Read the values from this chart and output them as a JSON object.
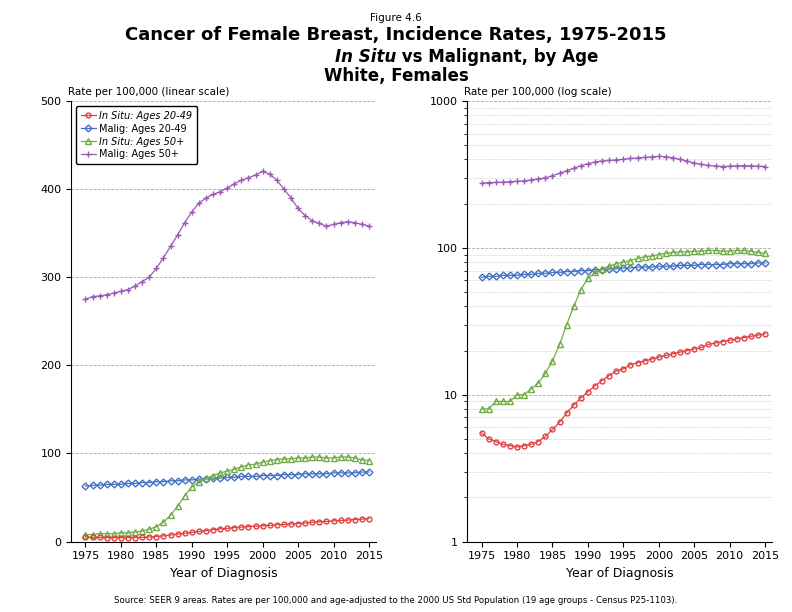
{
  "years": [
    1975,
    1976,
    1977,
    1978,
    1979,
    1980,
    1981,
    1982,
    1983,
    1984,
    1985,
    1986,
    1987,
    1988,
    1989,
    1990,
    1991,
    1992,
    1993,
    1994,
    1995,
    1996,
    1997,
    1998,
    1999,
    2000,
    2001,
    2002,
    2003,
    2004,
    2005,
    2006,
    2007,
    2008,
    2009,
    2010,
    2011,
    2012,
    2013,
    2014,
    2015
  ],
  "insitu_20_49": [
    5.5,
    5.0,
    4.8,
    4.6,
    4.5,
    4.4,
    4.5,
    4.6,
    4.8,
    5.2,
    5.8,
    6.5,
    7.5,
    8.5,
    9.5,
    10.5,
    11.5,
    12.5,
    13.5,
    14.5,
    15.0,
    16.0,
    16.5,
    17.0,
    17.5,
    18.0,
    18.5,
    19.0,
    19.5,
    20.0,
    20.5,
    21.0,
    22.0,
    22.5,
    23.0,
    23.5,
    24.0,
    24.5,
    25.0,
    25.5,
    26.0
  ],
  "malig_20_49": [
    63,
    64,
    64,
    65,
    65,
    65,
    66,
    66,
    67,
    67,
    68,
    68,
    69,
    69,
    70,
    70,
    71,
    71,
    72,
    72,
    73,
    73,
    74,
    74,
    74,
    75,
    75,
    75,
    76,
    76,
    76,
    77,
    77,
    77,
    77,
    78,
    78,
    78,
    78,
    79,
    79
  ],
  "insitu_50plus": [
    8,
    8,
    9,
    9,
    9,
    10,
    10,
    11,
    12,
    14,
    17,
    22,
    30,
    40,
    52,
    62,
    68,
    72,
    75,
    78,
    80,
    82,
    85,
    87,
    88,
    90,
    92,
    93,
    94,
    94,
    95,
    95,
    96,
    96,
    95,
    95,
    96,
    96,
    95,
    93,
    92
  ],
  "malig_50plus": [
    275,
    278,
    279,
    280,
    282,
    284,
    286,
    290,
    295,
    300,
    310,
    322,
    335,
    348,
    362,
    374,
    384,
    390,
    394,
    397,
    401,
    406,
    410,
    413,
    416,
    420,
    417,
    410,
    400,
    390,
    378,
    370,
    364,
    361,
    358,
    360,
    362,
    363,
    362,
    360,
    358
  ],
  "insitu_20_49_color": "#e04040",
  "malig_20_49_color": "#4472c4",
  "insitu_50plus_color": "#70ad47",
  "malig_50plus_color": "#9b59b6",
  "title_line1": "Cancer of Female Breast, Incidence Rates, 1975-2015",
  "title_line2_italic": "In Situ",
  "title_line2_rest": " vs Malignant, by Age",
  "title_line3": "White, Females",
  "figure_label": "Figure 4.6",
  "ylabel_linear": "Rate per 100,000 (linear scale)",
  "ylabel_log": "Rate per 100,000 (log scale)",
  "xlabel": "Year of Diagnosis",
  "source_text": "Source: SEER 9 areas. Rates are per 100,000 and age-adjusted to the 2000 US Std Population (19 age groups - Census P25-1103).",
  "legend_labels": [
    "In Situ: Ages 20-49",
    "Malig: Ages 20-49",
    "In Situ: Ages 50+",
    "Malig: Ages 50+"
  ]
}
